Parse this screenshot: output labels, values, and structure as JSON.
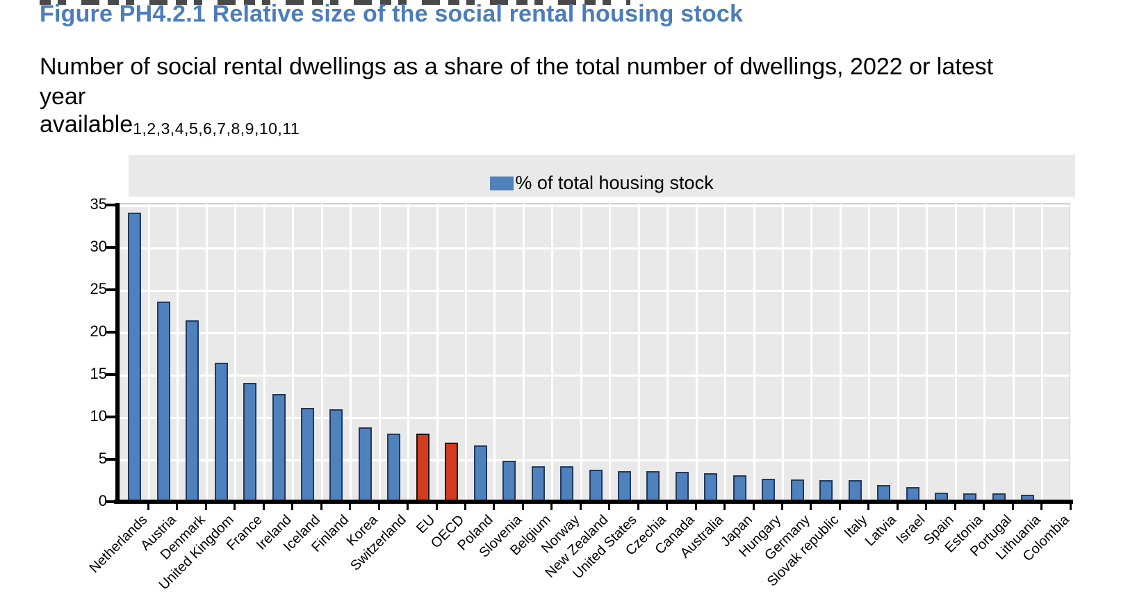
{
  "header": {
    "title": "Figure PH4.2.1 Relative size of the social rental housing stock",
    "subtitle_line1": "Number of social rental dwellings as a share of the total number of dwellings, 2022 or latest",
    "subtitle_line2": "year",
    "subtitle_line3_word": "available",
    "subtitle_line3_superscript": "1,2,3,4,5,6,7,8,9,10,11"
  },
  "legend": {
    "label": "% of total housing stock"
  },
  "colors": {
    "title_blue": "#4b7dbd",
    "bar_fill": "#4f81bd",
    "bar_border": "#20395f",
    "highlight_fill": "#d23b1e",
    "highlight_border": "#20100a",
    "plot_background": "#e9e9e9",
    "legend_background": "#e9e9e9",
    "gridline": "#ffffff",
    "axis": "#000000"
  },
  "chart_data": {
    "type": "bar",
    "title": "Figure PH4.2.1 Relative size of the social rental housing stock",
    "subtitle": "Number of social rental dwellings as a share of the total number of dwellings, 2022 or latest year available",
    "subtitle_superscript": "1,2,3,4,5,6,7,8,9,10,11",
    "series_name": "% of total housing stock",
    "legend_position": "top",
    "grid": true,
    "xlabel": "",
    "ylabel": "",
    "ylim": [
      0,
      35
    ],
    "yticks": [
      0,
      5,
      10,
      15,
      20,
      25,
      30,
      35
    ],
    "highlighted_categories": [
      "EU",
      "OECD"
    ],
    "categories": [
      "Netherlands",
      "Austria",
      "Denmark",
      "United Kingdom",
      "France",
      "Ireland",
      "Iceland",
      "Finland",
      "Korea",
      "Switzerland",
      "EU",
      "OECD",
      "Poland",
      "Slovenia",
      "Belgium",
      "Norway",
      "New Zealand",
      "United States",
      "Czechia",
      "Canada",
      "Australia",
      "Japan",
      "Hungary",
      "Germany",
      "Slovak republic",
      "Italy",
      "Latvia",
      "Israel",
      "Spain",
      "Estonia",
      "Portugal",
      "Lithuania",
      "Colombia"
    ],
    "values": [
      34.1,
      23.6,
      21.4,
      16.4,
      14.0,
      12.7,
      11.1,
      10.9,
      8.8,
      8.0,
      8.0,
      7.0,
      6.6,
      4.8,
      4.2,
      4.2,
      3.8,
      3.6,
      3.6,
      3.5,
      3.4,
      3.1,
      2.7,
      2.6,
      2.5,
      2.5,
      2.0,
      1.7,
      1.1,
      1.0,
      1.0,
      0.8,
      0.1
    ]
  }
}
